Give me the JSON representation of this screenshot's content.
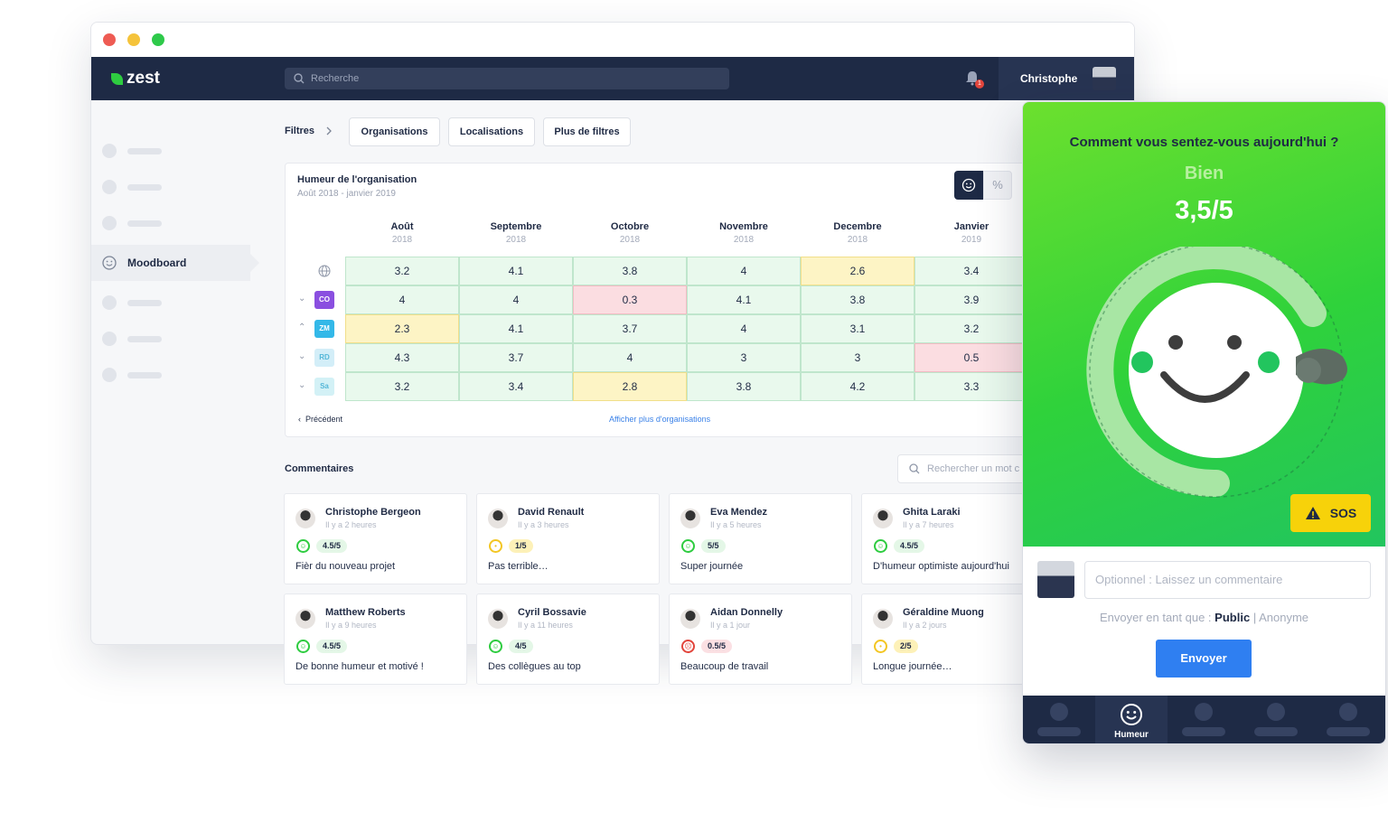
{
  "app": {
    "logo": "zest",
    "search_placeholder": "Recherche",
    "notification_count": "1",
    "user_name": "Christophe"
  },
  "sidebar": {
    "active_label": "Moodboard"
  },
  "filters": {
    "label": "Filtres",
    "buttons": [
      "Organisations",
      "Localisations",
      "Plus de filtres"
    ]
  },
  "mood": {
    "title": "Humeur de l'organisation",
    "subtitle": "Août 2018 - janvier 2019",
    "toggle_percent": "%",
    "months": [
      {
        "name": "Août",
        "year": "2018"
      },
      {
        "name": "Septembre",
        "year": "2018"
      },
      {
        "name": "Octobre",
        "year": "2018"
      },
      {
        "name": "Novembre",
        "year": "2018"
      },
      {
        "name": "Decembre",
        "year": "2018"
      },
      {
        "name": "Janvier",
        "year": "2019"
      }
    ],
    "rows": [
      {
        "tag": "",
        "color": "",
        "values": [
          "3.2",
          "4.1",
          "3.8",
          "4",
          "2.6",
          "3.4"
        ],
        "states": [
          "g",
          "g",
          "g",
          "g",
          "y",
          "g"
        ]
      },
      {
        "tag": "CO",
        "color": "#8a4fe0",
        "values": [
          "4",
          "4",
          "0.3",
          "4.1",
          "3.8",
          "3.9"
        ],
        "states": [
          "g",
          "g",
          "r",
          "g",
          "g",
          "g"
        ]
      },
      {
        "tag": "ZM",
        "color": "#33b8e8",
        "values": [
          "2.3",
          "4.1",
          "3.7",
          "4",
          "3.1",
          "3.2"
        ],
        "states": [
          "y",
          "g",
          "g",
          "g",
          "g",
          "g"
        ]
      },
      {
        "tag": "RD",
        "color": "#d3eef8",
        "values": [
          "4.3",
          "3.7",
          "4",
          "3",
          "3",
          "0.5"
        ],
        "states": [
          "g",
          "g",
          "g",
          "g",
          "g",
          "r"
        ]
      },
      {
        "tag": "Sa",
        "color": "#d3f1f6",
        "values": [
          "3.2",
          "3.4",
          "2.8",
          "3.8",
          "4.2",
          "3.3"
        ],
        "states": [
          "g",
          "g",
          "y",
          "g",
          "g",
          "g"
        ]
      }
    ],
    "prev_label": "Précédent",
    "more_label": "Afficher plus d'organisations"
  },
  "comments": {
    "title": "Commentaires",
    "search_placeholder": "Rechercher un mot c",
    "items": [
      {
        "name": "Christophe Bergeon",
        "time": "Il y a 2 heures",
        "score": "4.5/5",
        "mood": "good",
        "text": "Fièr du nouveau projet"
      },
      {
        "name": "David Renault",
        "time": "Il y a 3 heures",
        "score": "1/5",
        "mood": "meh",
        "text": "Pas terrible…"
      },
      {
        "name": "Eva Mendez",
        "time": "Il y a 5 heures",
        "score": "5/5",
        "mood": "good",
        "text": "Super journée"
      },
      {
        "name": "Ghita Laraki",
        "time": "Il y a 7 heures",
        "score": "4.5/5",
        "mood": "good",
        "text": "D'humeur optimiste aujourd'hui"
      },
      {
        "name": "Matthew Roberts",
        "time": "Il y a 9 heures",
        "score": "4.5/5",
        "mood": "good",
        "text": "De bonne humeur et motivé !"
      },
      {
        "name": "Cyril Bossavie",
        "time": "Il y a 11 heures",
        "score": "4/5",
        "mood": "good",
        "text": "Des collègues au top"
      },
      {
        "name": "Aidan Donnelly",
        "time": "Il y a 1 jour",
        "score": "0.5/5",
        "mood": "bad",
        "text": "Beaucoup de travail"
      },
      {
        "name": "Géraldine Muong",
        "time": "Il y a 2 jours",
        "score": "2/5",
        "mood": "meh",
        "text": "Longue journée…"
      }
    ]
  },
  "mobile": {
    "question": "Comment vous sentez-vous aujourd'hui ?",
    "mood_word": "Bien",
    "score": "3,5/5",
    "sos_label": "SOS",
    "comment_placeholder": "Optionnel : Laissez un commentaire",
    "send_as_label": "Envoyer en tant que :",
    "send_as_public": "Public",
    "send_as_separator": "|",
    "send_as_anon": "Anonyme",
    "send_button": "Envoyer",
    "active_tab": "Humeur"
  },
  "colors": {
    "navy": "#1e2a45",
    "green": "#2ecc40",
    "yellow_cell": "#fdf4c5",
    "red_cell": "#fbdde1",
    "blue_button": "#2f7ff1",
    "sos_yellow": "#f7d20a"
  }
}
